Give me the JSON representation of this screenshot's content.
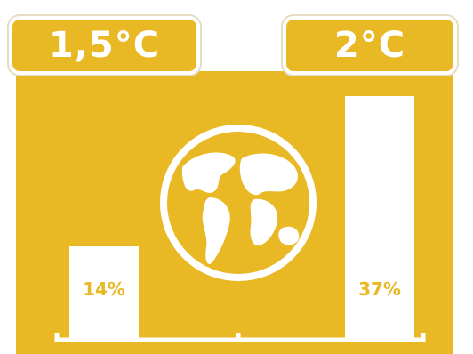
{
  "colors": {
    "background": "#e8b825",
    "foreground": "#ffffff"
  },
  "icons": {
    "center": "globe-icon"
  },
  "scenarios": {
    "left": "1,5°C",
    "right": "2°C"
  },
  "chart_data": {
    "type": "bar",
    "categories": [
      "1,5°C",
      "2°C"
    ],
    "values": [
      14,
      37
    ],
    "value_labels": [
      "14%",
      "37%"
    ],
    "ylim": [
      0,
      37
    ],
    "grid": false,
    "legend": "none"
  }
}
